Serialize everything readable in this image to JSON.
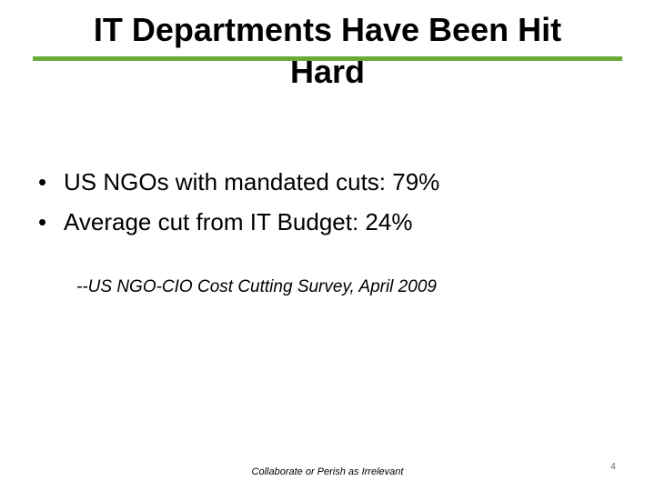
{
  "slide": {
    "title": "IT Departments Have Been Hit Hard",
    "accent_color": "#6aaa3a",
    "bullets": [
      "US NGOs with mandated cuts: 79%",
      "Average cut from IT Budget: 24%"
    ],
    "bullet_symbol": "•",
    "citation": "--US NGO-CIO Cost Cutting Survey, April 2009",
    "footer": "Collaborate or Perish as Irrelevant",
    "page_number": "4"
  }
}
